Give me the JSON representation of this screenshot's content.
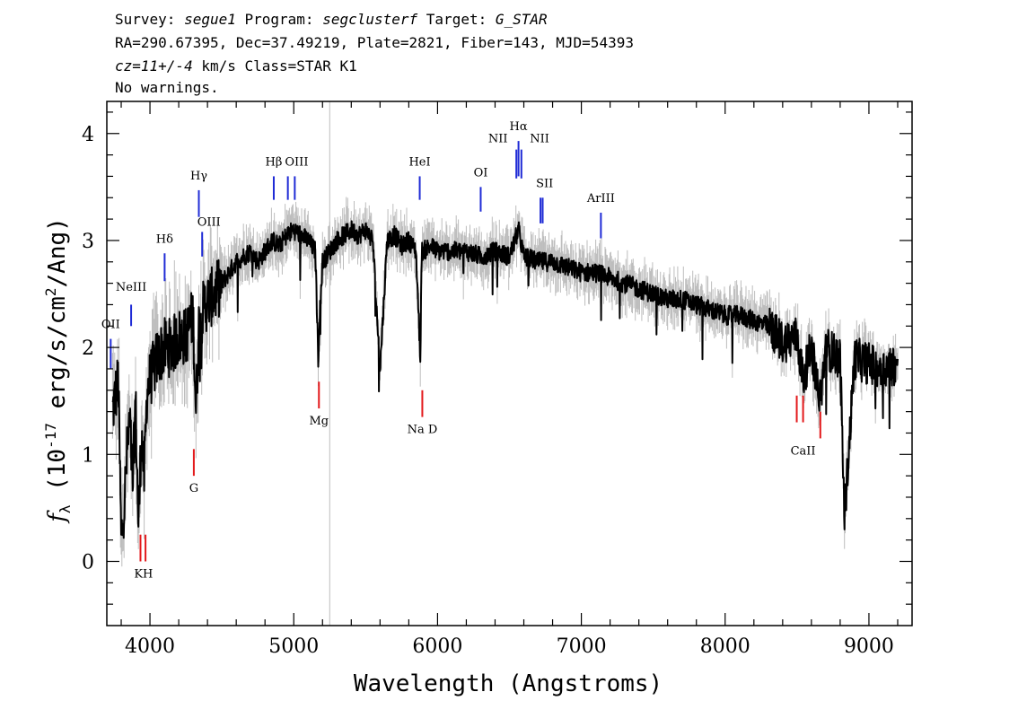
{
  "header": {
    "survey_label": "Survey: ",
    "survey": "segue1",
    "program_label": " Program: ",
    "program": "segclusterf",
    "target_label": " Target: ",
    "target": "G_STAR",
    "line2": "RA=290.67395, Dec=37.49219, Plate=2821, Fiber=143, MJD=54393",
    "cz": "cz=11+/-4",
    "line3_rest": " km/s Class=STAR K1",
    "line4": "No warnings."
  },
  "chart_data": {
    "type": "line",
    "xlabel": "Wavelength (Angstroms)",
    "ylabel": "f_λ (10^-17 erg/s/cm^2/Ang)",
    "xlim": [
      3700,
      9300
    ],
    "ylim": [
      -0.6,
      4.3
    ],
    "xticks": [
      4000,
      5000,
      6000,
      7000,
      8000,
      9000
    ],
    "yticks": [
      0,
      1,
      2,
      3,
      4
    ],
    "colors": {
      "flux": "#000000",
      "error_band": "#bdbdbd",
      "emission": "#1f2bd6",
      "absorption": "#e31a1c"
    },
    "series": [
      {
        "kind": "spectrum",
        "x": [
          3740,
          3780,
          3800,
          3820,
          3840,
          3860,
          3880,
          3900,
          3920,
          3940,
          3960,
          3980,
          4000,
          4050,
          4100,
          4150,
          4200,
          4250,
          4300,
          4320,
          4340,
          4380,
          4450,
          4500,
          4550,
          4600,
          4650,
          4700,
          4750,
          4800,
          4850,
          4900,
          4950,
          5000,
          5050,
          5100,
          5150,
          5170,
          5180,
          5200,
          5250,
          5300,
          5350,
          5400,
          5450,
          5500,
          5550,
          5600,
          5650,
          5700,
          5750,
          5800,
          5850,
          5880,
          5890,
          5900,
          5950,
          6000,
          6100,
          6200,
          6300,
          6400,
          6500,
          6563,
          6600,
          6700,
          6800,
          6900,
          7000,
          7100,
          7200,
          7300,
          7400,
          7500,
          7600,
          7700,
          7800,
          7900,
          8000,
          8100,
          8200,
          8300,
          8400,
          8500,
          8542,
          8600,
          8662,
          8700,
          8800,
          8830,
          8900,
          9000,
          9100,
          9200
        ],
        "y": [
          1.4,
          1.7,
          0.2,
          0.5,
          1.0,
          1.3,
          0.7,
          1.5,
          0.3,
          1.2,
          0.8,
          1.6,
          1.7,
          1.9,
          2.0,
          2.0,
          2.1,
          2.1,
          2.3,
          1.4,
          2.2,
          2.4,
          2.5,
          2.6,
          2.7,
          2.8,
          2.85,
          2.9,
          2.8,
          2.9,
          3.0,
          2.95,
          3.05,
          3.1,
          3.05,
          3.0,
          2.9,
          1.9,
          2.3,
          2.8,
          2.9,
          3.0,
          3.05,
          3.1,
          3.05,
          3.1,
          3.0,
          1.8,
          3.0,
          3.05,
          2.95,
          3.0,
          2.9,
          1.9,
          2.9,
          2.9,
          2.95,
          2.9,
          2.9,
          2.9,
          2.85,
          2.9,
          2.85,
          3.1,
          2.85,
          2.8,
          2.8,
          2.75,
          2.7,
          2.7,
          2.65,
          2.6,
          2.55,
          2.5,
          2.45,
          2.45,
          2.4,
          2.35,
          2.3,
          2.3,
          2.25,
          2.2,
          2.05,
          2.1,
          1.7,
          2.0,
          1.5,
          2.0,
          1.9,
          0.4,
          1.9,
          1.85,
          1.8,
          1.85
        ]
      }
    ],
    "lines": [
      {
        "label": "OII",
        "wave": 3727,
        "y_top": 2.08,
        "y_bot": 1.8,
        "type": "emission",
        "label_x": 3727,
        "label_y": 2.18
      },
      {
        "label": "NeIII",
        "wave": 3869,
        "y_top": 2.4,
        "y_bot": 2.2,
        "type": "emission",
        "label_x": 3869,
        "label_y": 2.53
      },
      {
        "label": "Hδ",
        "wave": 4102,
        "y_top": 2.88,
        "y_bot": 2.62,
        "type": "emission",
        "label_x": 4102,
        "label_y": 2.98
      },
      {
        "label": "Hγ",
        "wave": 4340,
        "y_top": 3.47,
        "y_bot": 3.22,
        "type": "emission",
        "label_x": 4340,
        "label_y": 3.57
      },
      {
        "label": "OIII",
        "wave": 4363,
        "y_top": 3.08,
        "y_bot": 2.85,
        "type": "emission",
        "label_x": 4410,
        "label_y": 3.14
      },
      {
        "label": "Hβ",
        "wave": 4861,
        "y_top": 3.6,
        "y_bot": 3.38,
        "type": "emission",
        "label_x": 4861,
        "label_y": 3.7
      },
      {
        "label": "OIII",
        "wave": 4959,
        "y_top": 3.6,
        "y_bot": 3.38,
        "type": "emission",
        "label_x": 5020,
        "label_y": 3.7
      },
      {
        "label": "OIII",
        "wave": 5007,
        "y_top": 3.6,
        "y_bot": 3.38,
        "type": "emission",
        "label_x": 5020,
        "label_y": 3.7
      },
      {
        "label": "HeI",
        "wave": 5876,
        "y_top": 3.6,
        "y_bot": 3.38,
        "type": "emission",
        "label_x": 5876,
        "label_y": 3.7
      },
      {
        "label": "OI",
        "wave": 6300,
        "y_top": 3.5,
        "y_bot": 3.27,
        "type": "emission",
        "label_x": 6300,
        "label_y": 3.6
      },
      {
        "label": "NII",
        "wave": 6548,
        "y_top": 3.85,
        "y_bot": 3.58,
        "type": "emission",
        "label_x": 6420,
        "label_y": 3.92
      },
      {
        "label": "Hα",
        "wave": 6563,
        "y_top": 3.93,
        "y_bot": 3.6,
        "type": "emission",
        "label_x": 6563,
        "label_y": 4.03
      },
      {
        "label": "NII",
        "wave": 6583,
        "y_top": 3.85,
        "y_bot": 3.58,
        "type": "emission",
        "label_x": 6710,
        "label_y": 3.92
      },
      {
        "label": "SII",
        "wave": 6716,
        "y_top": 3.4,
        "y_bot": 3.16,
        "type": "emission",
        "label_x": 6745,
        "label_y": 3.5
      },
      {
        "label": "SII",
        "wave": 6731,
        "y_top": 3.4,
        "y_bot": 3.16,
        "type": "emission",
        "label_x": 6745,
        "label_y": 3.5
      },
      {
        "label": "ArIII",
        "wave": 7136,
        "y_top": 3.26,
        "y_bot": 3.02,
        "type": "emission",
        "label_x": 7136,
        "label_y": 3.36
      },
      {
        "label": "KH",
        "wave": 3934,
        "y_top": 0.25,
        "y_bot": 0.0,
        "type": "absorption",
        "label_x": 3955,
        "label_y": -0.15
      },
      {
        "label": "KH",
        "wave": 3969,
        "y_top": 0.25,
        "y_bot": 0.0,
        "type": "absorption",
        "label_x": 3955,
        "label_y": -0.15
      },
      {
        "label": "G",
        "wave": 4305,
        "y_top": 1.05,
        "y_bot": 0.8,
        "type": "absorption",
        "label_x": 4305,
        "label_y": 0.65
      },
      {
        "label": "Mg",
        "wave": 5175,
        "y_top": 1.68,
        "y_bot": 1.43,
        "type": "absorption",
        "label_x": 5175,
        "label_y": 1.28
      },
      {
        "label": "Na D",
        "wave": 5894,
        "y_top": 1.6,
        "y_bot": 1.35,
        "type": "absorption",
        "label_x": 5894,
        "label_y": 1.2
      },
      {
        "label": "CaII",
        "wave": 8498,
        "y_top": 1.55,
        "y_bot": 1.3,
        "type": "absorption",
        "label_x": 8542,
        "label_y": 1.0
      },
      {
        "label": "CaII",
        "wave": 8542,
        "y_top": 1.55,
        "y_bot": 1.3,
        "type": "absorption",
        "label_x": 8542,
        "label_y": 1.0
      },
      {
        "label": "CaII",
        "wave": 8662,
        "y_top": 1.4,
        "y_bot": 1.15,
        "type": "absorption",
        "label_x": 8542,
        "label_y": 1.0
      }
    ],
    "vertical_markers": [
      5250
    ]
  }
}
